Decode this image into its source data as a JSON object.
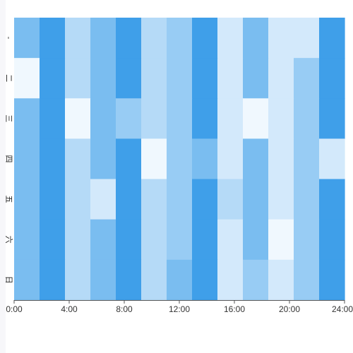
{
  "chart_data": {
    "type": "heatmap",
    "title": "",
    "xlabel": "",
    "ylabel": "",
    "x_ticks": [
      "0:00",
      "4:00",
      "8:00",
      "12:00",
      "16:00",
      "20:00",
      "24:00"
    ],
    "x_range": [
      0,
      24
    ],
    "y_tick_labels": [
      "-",
      "二",
      "三",
      "四",
      "五",
      "六",
      "日"
    ],
    "legend": "none",
    "grid": false,
    "color_scale": {
      "min_color": "#f0f8fe",
      "max_color": "#3f9fe9",
      "value_range": [
        0,
        6
      ]
    },
    "rows": 7,
    "columns": 13,
    "values": [
      [
        4,
        6,
        2,
        4,
        6,
        2,
        3,
        6,
        1,
        4,
        1,
        1,
        6
      ],
      [
        0,
        6,
        2,
        4,
        6,
        2,
        3,
        6,
        1,
        4,
        1,
        3,
        6
      ],
      [
        4,
        6,
        0,
        4,
        3,
        2,
        3,
        6,
        1,
        0,
        1,
        3,
        6
      ],
      [
        4,
        6,
        2,
        4,
        6,
        0,
        3,
        4,
        1,
        4,
        1,
        3,
        1
      ],
      [
        4,
        6,
        2,
        1,
        6,
        2,
        3,
        6,
        2,
        4,
        1,
        3,
        6
      ],
      [
        4,
        6,
        2,
        4,
        6,
        2,
        3,
        6,
        1,
        4,
        0,
        3,
        6
      ],
      [
        4,
        6,
        2,
        4,
        6,
        2,
        4,
        6,
        1,
        3,
        1,
        3,
        6
      ]
    ]
  }
}
